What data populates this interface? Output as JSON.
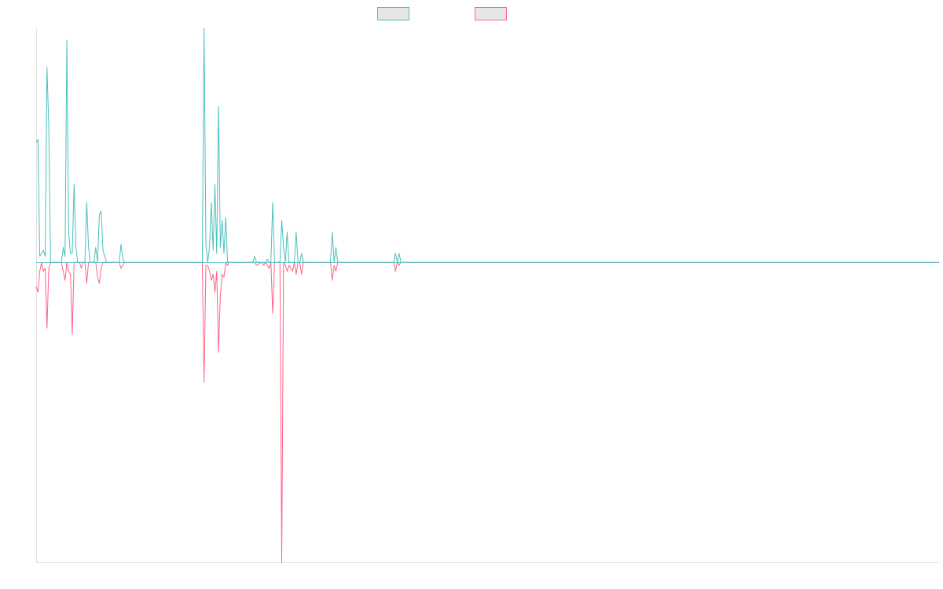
{
  "colors": {
    "series_a": "#4bc0c0",
    "series_b": "#ff6384",
    "legend_fill": "#e6e6e6",
    "axis": "#e0e0e0",
    "baseline": "#4bc0c0"
  },
  "legend": {
    "placement": "top-center",
    "items": [
      {
        "color": "#4bc0c0",
        "label": ""
      },
      {
        "color": "#ff6384",
        "label": ""
      }
    ]
  },
  "chart_data": {
    "type": "line",
    "title": "",
    "xlabel": "",
    "ylabel": "",
    "grid": false,
    "x_count": 500,
    "ylim": [
      -1,
      0.78
    ],
    "series": [
      {
        "color": "#4bc0c0",
        "points": [
          [
            0,
            0.4
          ],
          [
            1,
            0.41
          ],
          [
            2,
            0.02
          ],
          [
            3,
            0.03
          ],
          [
            4,
            0.04
          ],
          [
            5,
            0.02
          ],
          [
            6,
            0.65
          ],
          [
            7,
            0.45
          ],
          [
            8,
            0.0
          ],
          [
            9,
            0.0
          ],
          [
            14,
            0.0
          ],
          [
            15,
            0.05
          ],
          [
            16,
            0.02
          ],
          [
            17,
            0.74
          ],
          [
            18,
            0.1
          ],
          [
            19,
            0.03
          ],
          [
            20,
            0.03
          ],
          [
            21,
            0.26
          ],
          [
            22,
            0.05
          ],
          [
            23,
            0.0
          ],
          [
            24,
            0.0
          ],
          [
            27,
            0.0
          ],
          [
            28,
            0.2
          ],
          [
            29,
            0.05
          ],
          [
            30,
            0.0
          ],
          [
            32,
            0.0
          ],
          [
            33,
            0.05
          ],
          [
            34,
            0.0
          ],
          [
            35,
            0.16
          ],
          [
            36,
            0.17
          ],
          [
            37,
            0.04
          ],
          [
            38,
            0.02
          ],
          [
            39,
            0.0
          ],
          [
            46,
            0.0
          ],
          [
            47,
            0.06
          ],
          [
            48,
            0.01
          ],
          [
            49,
            0.0
          ],
          [
            92,
            0.0
          ],
          [
            93,
            0.78
          ],
          [
            94,
            0.06
          ],
          [
            95,
            0.0
          ],
          [
            96,
            0.05
          ],
          [
            97,
            0.2
          ],
          [
            98,
            0.04
          ],
          [
            99,
            0.26
          ],
          [
            100,
            0.03
          ],
          [
            101,
            0.52
          ],
          [
            102,
            0.05
          ],
          [
            103,
            0.14
          ],
          [
            104,
            0.03
          ],
          [
            105,
            0.15
          ],
          [
            106,
            0.0
          ],
          [
            107,
            0.0
          ],
          [
            120,
            0.0
          ],
          [
            121,
            0.02
          ],
          [
            122,
            0.0
          ],
          [
            125,
            0.0
          ],
          [
            126,
            0.0
          ],
          [
            127,
            0.0
          ],
          [
            128,
            0.01
          ],
          [
            129,
            0.0
          ],
          [
            130,
            0.0
          ],
          [
            131,
            0.2
          ],
          [
            132,
            0.0
          ],
          [
            135,
            0.0
          ],
          [
            136,
            0.14
          ],
          [
            137,
            0.05
          ],
          [
            138,
            0.0
          ],
          [
            139,
            0.1
          ],
          [
            140,
            0.0
          ],
          [
            141,
            0.0
          ],
          [
            142,
            0.0
          ],
          [
            143,
            0.0
          ],
          [
            144,
            0.1
          ],
          [
            145,
            0.0
          ],
          [
            146,
            0.0
          ],
          [
            147,
            0.03
          ],
          [
            148,
            0.0
          ],
          [
            163,
            0.0
          ],
          [
            164,
            0.1
          ],
          [
            165,
            0.0
          ],
          [
            166,
            0.05
          ],
          [
            167,
            0.0
          ],
          [
            198,
            0.0
          ],
          [
            199,
            0.03
          ],
          [
            200,
            0.0
          ],
          [
            201,
            0.03
          ],
          [
            202,
            0.0
          ],
          [
            500,
            0.0
          ]
        ]
      },
      {
        "color": "#ff6384",
        "points": [
          [
            0,
            -0.08
          ],
          [
            1,
            -0.1
          ],
          [
            2,
            -0.03
          ],
          [
            3,
            0.0
          ],
          [
            4,
            -0.03
          ],
          [
            5,
            -0.02
          ],
          [
            6,
            -0.22
          ],
          [
            7,
            -0.02
          ],
          [
            8,
            0.0
          ],
          [
            14,
            0.0
          ],
          [
            15,
            -0.03
          ],
          [
            16,
            -0.06
          ],
          [
            17,
            0.0
          ],
          [
            18,
            -0.03
          ],
          [
            19,
            -0.04
          ],
          [
            20,
            -0.24
          ],
          [
            21,
            0.0
          ],
          [
            24,
            0.0
          ],
          [
            25,
            -0.02
          ],
          [
            26,
            0.0
          ],
          [
            27,
            0.0
          ],
          [
            28,
            -0.07
          ],
          [
            29,
            0.0
          ],
          [
            32,
            0.0
          ],
          [
            33,
            0.0
          ],
          [
            34,
            -0.05
          ],
          [
            35,
            -0.07
          ],
          [
            36,
            -0.02
          ],
          [
            37,
            0.0
          ],
          [
            46,
            0.0
          ],
          [
            47,
            -0.02
          ],
          [
            48,
            -0.01
          ],
          [
            49,
            0.0
          ],
          [
            92,
            0.0
          ],
          [
            93,
            -0.4
          ],
          [
            94,
            -0.01
          ],
          [
            95,
            -0.01
          ],
          [
            96,
            -0.03
          ],
          [
            97,
            -0.06
          ],
          [
            98,
            -0.04
          ],
          [
            99,
            -0.1
          ],
          [
            100,
            -0.03
          ],
          [
            101,
            -0.3
          ],
          [
            102,
            -0.11
          ],
          [
            103,
            -0.04
          ],
          [
            104,
            -0.05
          ],
          [
            105,
            0.0
          ],
          [
            106,
            -0.01
          ],
          [
            107,
            0.0
          ],
          [
            120,
            0.0
          ],
          [
            121,
            0.0
          ],
          [
            122,
            -0.01
          ],
          [
            125,
            0.0
          ],
          [
            126,
            -0.01
          ],
          [
            127,
            0.0
          ],
          [
            128,
            -0.01
          ],
          [
            129,
            -0.02
          ],
          [
            130,
            0.0
          ],
          [
            131,
            -0.17
          ],
          [
            132,
            0.0
          ],
          [
            135,
            0.0
          ],
          [
            136,
            -1.0
          ],
          [
            137,
            0.0
          ],
          [
            138,
            -0.01
          ],
          [
            139,
            -0.03
          ],
          [
            140,
            -0.01
          ],
          [
            141,
            -0.02
          ],
          [
            142,
            -0.03
          ],
          [
            143,
            0.0
          ],
          [
            144,
            -0.04
          ],
          [
            145,
            0.0
          ],
          [
            146,
            0.0
          ],
          [
            147,
            -0.04
          ],
          [
            148,
            0.0
          ],
          [
            163,
            0.0
          ],
          [
            164,
            -0.06
          ],
          [
            165,
            -0.01
          ],
          [
            166,
            -0.03
          ],
          [
            167,
            0.0
          ],
          [
            198,
            0.0
          ],
          [
            199,
            -0.03
          ],
          [
            200,
            0.0
          ],
          [
            201,
            -0.01
          ],
          [
            202,
            0.0
          ],
          [
            500,
            0.0
          ]
        ]
      }
    ]
  }
}
